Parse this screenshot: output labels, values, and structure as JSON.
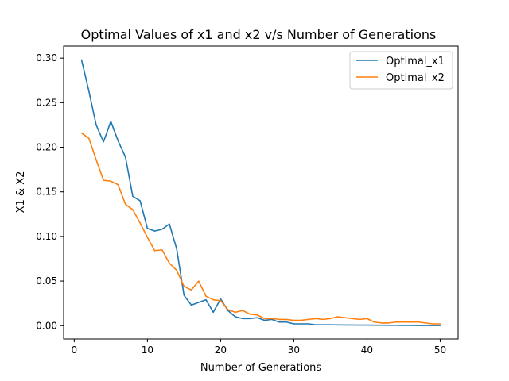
{
  "chart_data": {
    "type": "line",
    "title": "Optimal Values of x1 and x2 v/s Number of Generations",
    "xlabel": "Number of Generations",
    "ylabel": "X1 & X2",
    "xlim": [
      -1.45,
      52.45
    ],
    "ylim": [
      -0.0149,
      0.3135
    ],
    "xticks": [
      0,
      10,
      20,
      30,
      40,
      50
    ],
    "yticks": [
      0.0,
      0.05,
      0.1,
      0.15,
      0.2,
      0.25,
      0.3
    ],
    "ytick_labels": [
      "0.00",
      "0.05",
      "0.10",
      "0.15",
      "0.20",
      "0.25",
      "0.30"
    ],
    "grid": false,
    "legend": "top-right",
    "x": [
      1,
      2,
      3,
      4,
      5,
      6,
      7,
      8,
      9,
      10,
      11,
      12,
      13,
      14,
      15,
      16,
      17,
      18,
      19,
      20,
      21,
      22,
      23,
      24,
      25,
      26,
      27,
      28,
      29,
      30,
      31,
      32,
      33,
      34,
      35,
      36,
      37,
      38,
      39,
      40,
      41,
      42,
      43,
      44,
      45,
      46,
      47,
      48,
      49,
      50
    ],
    "series": [
      {
        "name": "Optimal_x1",
        "color": "#1f77b4",
        "values": [
          0.298,
          0.263,
          0.225,
          0.206,
          0.229,
          0.207,
          0.189,
          0.145,
          0.14,
          0.109,
          0.106,
          0.108,
          0.114,
          0.086,
          0.034,
          0.023,
          0.026,
          0.029,
          0.015,
          0.03,
          0.017,
          0.01,
          0.008,
          0.008,
          0.009,
          0.006,
          0.007,
          0.004,
          0.004,
          0.002,
          0.002,
          0.002,
          0.001,
          0.001,
          0.001,
          0.0008,
          0.0007,
          0.0007,
          0.0006,
          0.0006,
          0.0005,
          0.0005,
          0.0004,
          0.0004,
          0.0003,
          0.0003,
          0.0002,
          0.0002,
          0.0002,
          0.0002
        ]
      },
      {
        "name": "Optimal_x2",
        "color": "#ff7f0e",
        "values": [
          0.216,
          0.21,
          0.186,
          0.163,
          0.162,
          0.158,
          0.136,
          0.13,
          0.115,
          0.099,
          0.084,
          0.085,
          0.07,
          0.062,
          0.044,
          0.04,
          0.05,
          0.033,
          0.029,
          0.028,
          0.018,
          0.015,
          0.017,
          0.013,
          0.012,
          0.008,
          0.008,
          0.007,
          0.007,
          0.006,
          0.006,
          0.007,
          0.008,
          0.007,
          0.008,
          0.01,
          0.009,
          0.008,
          0.007,
          0.008,
          0.004,
          0.003,
          0.003,
          0.004,
          0.004,
          0.004,
          0.004,
          0.003,
          0.002,
          0.002
        ]
      }
    ]
  }
}
